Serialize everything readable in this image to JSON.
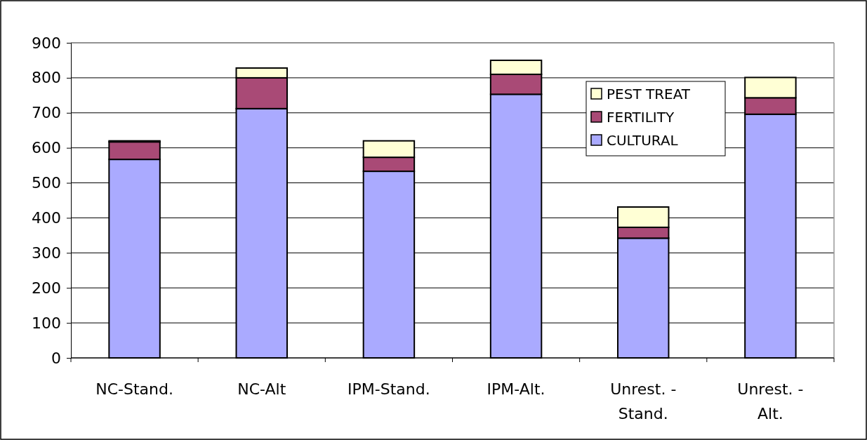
{
  "chart_data": {
    "type": "bar",
    "stacked": true,
    "categories": [
      "NC-Stand.",
      "NC-Alt",
      "IPM-Stand.",
      "IPM-Alt.",
      "Unrest. -\nStand.",
      "Unrest. -\nAlt."
    ],
    "series": [
      {
        "name": "CULTURAL",
        "color": "#aaaaff",
        "values": [
          567,
          712,
          533,
          753,
          342,
          696
        ]
      },
      {
        "name": "FERTILITY",
        "color": "#a94a76",
        "values": [
          50,
          88,
          40,
          57,
          31,
          47
        ]
      },
      {
        "name": "PEST TREAT",
        "color": "#ffffd5",
        "values": [
          3,
          28,
          47,
          40,
          58,
          58
        ]
      }
    ],
    "ylim": [
      0,
      900
    ],
    "yticks": [
      0,
      100,
      200,
      300,
      400,
      500,
      600,
      700,
      800,
      900
    ],
    "grid": "y",
    "legend": "top right"
  }
}
